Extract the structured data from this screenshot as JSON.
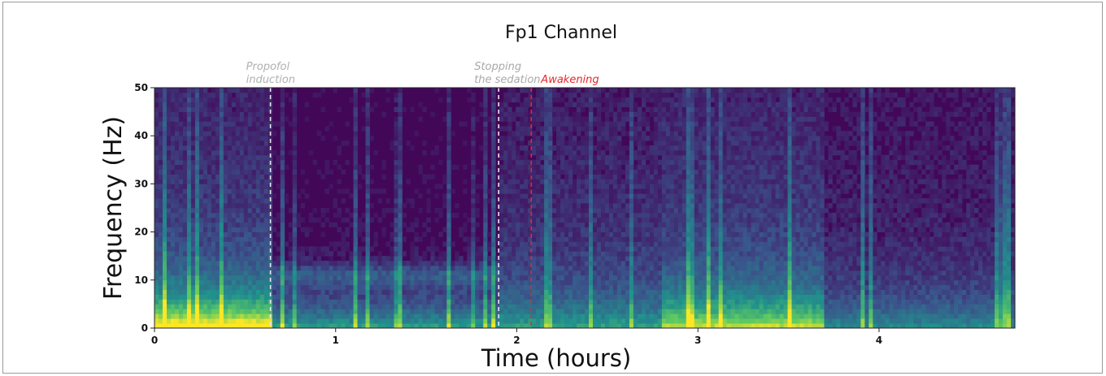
{
  "chart_data": {
    "type": "heatmap",
    "title": "Fp1 Channel",
    "xlabel": "Time (hours)",
    "ylabel": "Frequency (Hz)",
    "xlim": [
      0,
      4.75
    ],
    "ylim": [
      0,
      50
    ],
    "x_ticks": [
      "0",
      "1",
      "2",
      "3",
      "4"
    ],
    "y_ticks": [
      "0",
      "10",
      "20",
      "30",
      "40",
      "50"
    ],
    "colormap": "viridis",
    "colors": {
      "low": "#440154",
      "mid": "#31688e",
      "high": "#fde725"
    },
    "events": [
      {
        "time": 0.64,
        "label_lines": [
          "Propofol",
          "induction"
        ],
        "color": "#b0b0b0",
        "line_color": "#e6e6e6"
      },
      {
        "time": 1.9,
        "label_lines": [
          "Stopping",
          "the sedation"
        ],
        "color": "#a8a8a8",
        "line_color": "#e6e6e6"
      },
      {
        "time": 2.08,
        "label_lines": [
          "Awakening"
        ],
        "color": "#e8262a",
        "line_color": "#e8262a"
      }
    ],
    "spectral_profile": [
      {
        "start": 0.0,
        "end": 0.64,
        "low_freq_power": 0.9,
        "high_freq_power": 0.45
      },
      {
        "start": 0.64,
        "end": 1.9,
        "low_freq_power": 0.55,
        "high_freq_power": 0.05,
        "alpha_band_hz": 11
      },
      {
        "start": 1.9,
        "end": 2.8,
        "low_freq_power": 0.4,
        "high_freq_power": 0.35
      },
      {
        "start": 2.8,
        "end": 3.7,
        "low_freq_power": 0.7,
        "high_freq_power": 0.45
      },
      {
        "start": 3.7,
        "end": 4.75,
        "low_freq_power": 0.35,
        "high_freq_power": 0.25
      }
    ]
  }
}
